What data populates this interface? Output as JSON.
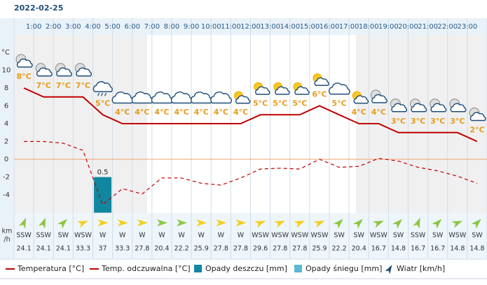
{
  "date": "2022-02-25",
  "chart_data": {
    "type": "weather",
    "categories": [
      null,
      "1:00",
      "2:00",
      "3:00",
      "4:00",
      "5:00",
      "6:00",
      "7:00",
      "8:00",
      "9:00",
      "10:00",
      "11:00",
      "12:00",
      "13:00",
      "14:00",
      "15:00",
      "16:00",
      "17:00",
      "18:00",
      "19:00",
      "20:00",
      "21:00",
      "22:00",
      "23:00"
    ],
    "y_unit": "°C",
    "ylim": [
      -6,
      14
    ],
    "yticks": [
      -4,
      -2,
      0,
      2,
      4,
      6,
      8,
      10
    ],
    "series": [
      {
        "name": "Temperatura [°C]",
        "color": "#c00000",
        "style": "line",
        "values": [
          8,
          7,
          7,
          7,
          5,
          4,
          4,
          4,
          4,
          4,
          4,
          4,
          5,
          5,
          5,
          6,
          5,
          4,
          4,
          3,
          3,
          3,
          3,
          2
        ],
        "value_labels": [
          "8°C",
          "7°C",
          "7°C",
          "7°C",
          "5°C",
          "4°C",
          "4°C",
          "4°C",
          "4°C",
          "4°C",
          "4°C",
          "4°C",
          "5°C",
          "5°C",
          "5°C",
          "6°C",
          "5°C",
          "4°C",
          "4°C",
          "3°C",
          "3°C",
          "3°C",
          "3°C",
          "2°C"
        ]
      },
      {
        "name": "Temp. odczuwalna [°C]",
        "color": "#c00000",
        "style": "dashed",
        "values": [
          2,
          2,
          1.8,
          1,
          -5.1,
          -3.3,
          -3.9,
          -2.1,
          -2.1,
          -2.7,
          -2.9,
          -2.1,
          -1.1,
          -1,
          -1.1,
          0,
          -0.9,
          -0.8,
          0.1,
          -0.2,
          -0.9,
          -1.3,
          -1.9,
          -2.7
        ]
      },
      {
        "name": "Opady deszczu [mm]",
        "color": "#11869f",
        "style": "bar",
        "values": [
          0,
          0,
          0,
          0,
          0.5,
          0,
          0,
          0,
          0,
          0,
          0,
          0,
          0,
          0,
          0,
          0,
          0,
          0,
          0,
          0,
          0,
          0,
          0,
          0
        ]
      },
      {
        "name": "Opady śniegu [mm]",
        "color": "#5bb8d4",
        "style": "bar",
        "values": [
          0,
          0,
          0,
          0,
          0,
          0,
          0,
          0,
          0,
          0,
          0,
          0,
          0,
          0,
          0,
          0,
          0,
          0,
          0,
          0,
          0,
          0,
          0,
          0
        ]
      }
    ],
    "wind": {
      "name": "Wiatr [km/h]",
      "unit": [
        "km",
        "/h"
      ],
      "directions": [
        "SSW",
        "SSW",
        "SW",
        "WSW",
        "W",
        "W",
        "W",
        "W",
        "W",
        "W",
        "W",
        "W",
        "WSW",
        "WSW",
        "WSW",
        "WSW",
        "SW",
        "SW",
        "WSW",
        "SW",
        "SSW",
        "SW",
        "WSW",
        "SW"
      ],
      "speeds": [
        24.1,
        24.1,
        24.1,
        33.3,
        37,
        33.3,
        27.8,
        20.4,
        22.2,
        25.9,
        27.8,
        27.8,
        29.6,
        27.8,
        27.8,
        25.9,
        22.2,
        20.4,
        16.7,
        14.8,
        16.7,
        16.7,
        14.8,
        14.8
      ],
      "colors": [
        "#8cc63f",
        "#8cc63f",
        "#8cc63f",
        "#f2cf1d",
        "#f2cf1d",
        "#f2cf1d",
        "#f2cf1d",
        "#8cc63f",
        "#8cc63f",
        "#f2cf1d",
        "#f2cf1d",
        "#f2cf1d",
        "#f2cf1d",
        "#f2cf1d",
        "#f2cf1d",
        "#f2cf1d",
        "#8cc63f",
        "#8cc63f",
        "#8cc63f",
        "#8cc63f",
        "#8cc63f",
        "#8cc63f",
        "#8cc63f",
        "#8cc63f"
      ]
    }
  }
}
